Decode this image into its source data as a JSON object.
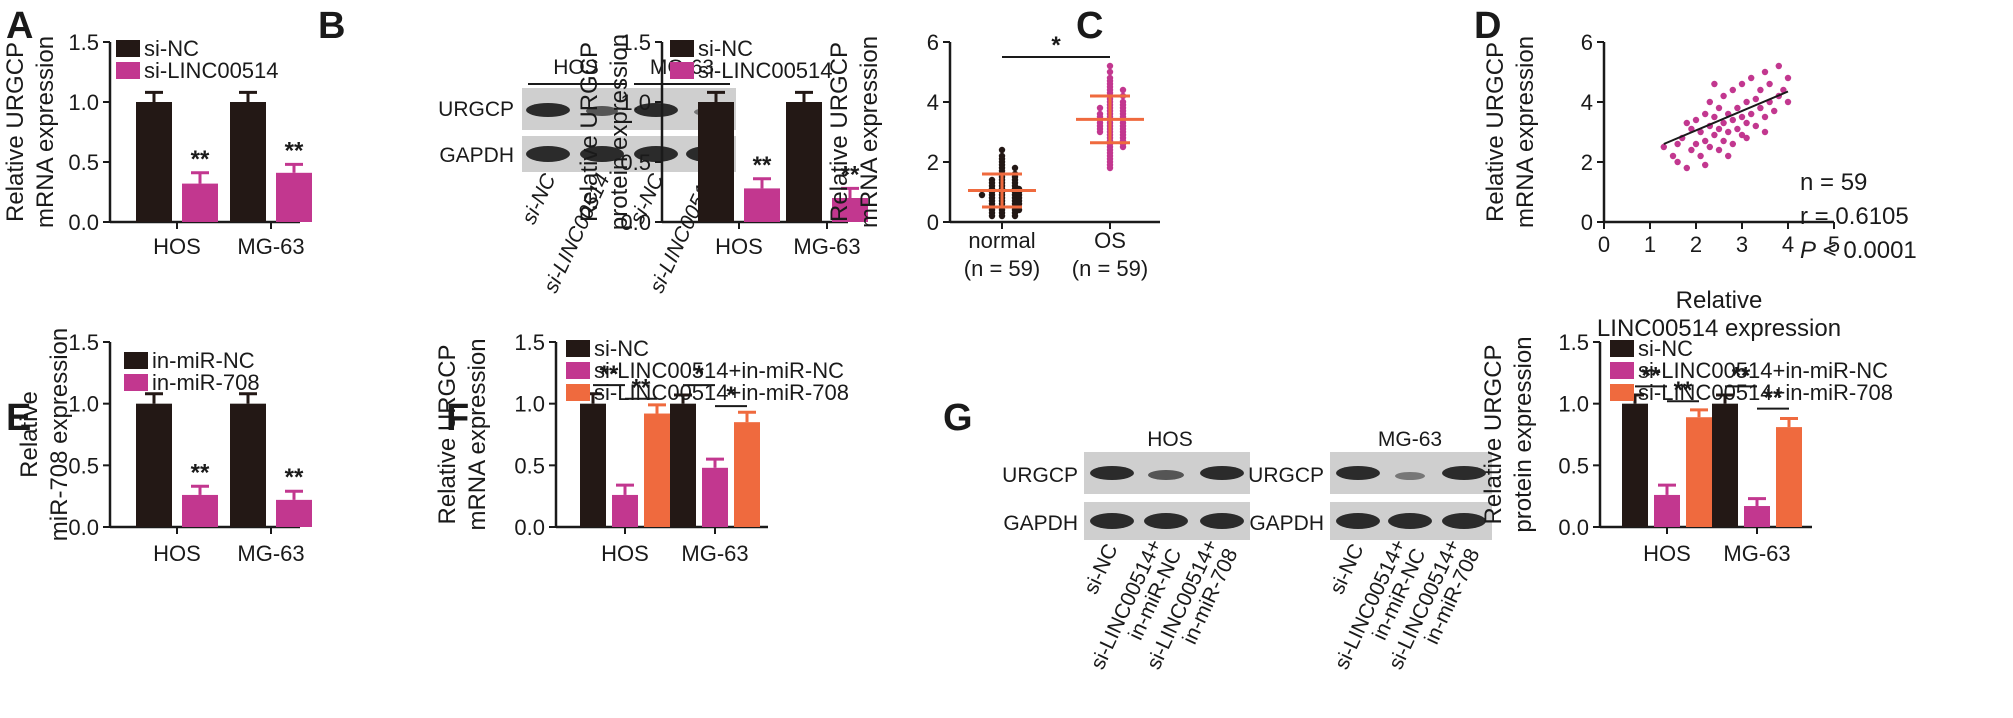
{
  "colors": {
    "black_bar": "#231815",
    "magenta": "#c2378f",
    "orange": "#ef6a3e",
    "scatter_magenta": "#c2378f",
    "axis": "#1a1a1a"
  },
  "panels": {
    "A": {
      "letter": "A"
    },
    "B": {
      "letter": "B",
      "blot": {
        "groups": [
          "HOS",
          "MG-63"
        ],
        "rows": [
          "URGCP",
          "GAPDH"
        ],
        "lanes": [
          "si-NC",
          "si-LINC00514",
          "si-NC",
          "si-LINC00514"
        ]
      }
    },
    "C": {
      "letter": "C"
    },
    "D": {
      "letter": "D"
    },
    "E": {
      "letter": "E"
    },
    "F": {
      "letter": "F"
    },
    "G": {
      "letter": "G",
      "blot_hos": {
        "title": "HOS",
        "rows": [
          "URGCP",
          "GAPDH"
        ]
      },
      "blot_mg": {
        "title": "MG-63",
        "rows": [
          "URGCP",
          "GAPDH"
        ]
      },
      "lanes": [
        "si-NC",
        "si-LINC00514+\nin-miR-NC",
        "si-LINC00514+\nin-miR-708"
      ]
    }
  },
  "chart_data": [
    {
      "id": "A",
      "type": "bar",
      "categories": [
        "HOS",
        "MG-63"
      ],
      "ylabel": "Relative URGCP\nmRNA expression",
      "ylim": [
        0,
        1.5
      ],
      "yticks": [
        "0.0",
        "0.5",
        "1.0",
        "1.5"
      ],
      "series": [
        {
          "name": "si-NC",
          "color": "#231815",
          "values": [
            1.0,
            1.0
          ],
          "err": [
            0.08,
            0.08
          ]
        },
        {
          "name": "si-LINC00514",
          "color": "#c2378f",
          "values": [
            0.32,
            0.41
          ],
          "err": [
            0.09,
            0.07
          ]
        }
      ],
      "annotations": [
        {
          "text": "**",
          "series": 1,
          "cat": 0
        },
        {
          "text": "**",
          "series": 1,
          "cat": 1
        }
      ]
    },
    {
      "id": "B",
      "type": "bar",
      "categories": [
        "HOS",
        "MG-63"
      ],
      "ylabel": "Relative URGCP\nprotein expression",
      "ylim": [
        0,
        1.5
      ],
      "yticks": [
        "0.0",
        "0.5",
        "1.0",
        "1.5"
      ],
      "series": [
        {
          "name": "si-NC",
          "color": "#231815",
          "values": [
            1.0,
            1.0
          ],
          "err": [
            0.08,
            0.08
          ]
        },
        {
          "name": "si-LINC00514",
          "color": "#c2378f",
          "values": [
            0.28,
            0.2
          ],
          "err": [
            0.08,
            0.08
          ]
        }
      ],
      "annotations": [
        {
          "text": "**",
          "series": 1,
          "cat": 0
        },
        {
          "text": "**",
          "series": 1,
          "cat": 1
        }
      ]
    },
    {
      "id": "C",
      "type": "scatter",
      "categories": [
        "normal\n(n = 59)",
        "OS\n(n = 59)"
      ],
      "ylabel": "Relative URGCP\nmRNA expression",
      "ylim": [
        0,
        6
      ],
      "yticks": [
        "0",
        "2",
        "4",
        "6"
      ],
      "groups": [
        {
          "color": "#231815",
          "mean": 1.05,
          "sd": 0.55,
          "points": [
            2.4,
            2.2,
            2.1,
            2.0,
            1.9,
            1.8,
            1.8,
            1.7,
            1.6,
            1.6,
            1.5,
            1.5,
            1.4,
            1.4,
            1.4,
            1.3,
            1.3,
            1.2,
            1.2,
            1.2,
            1.1,
            1.1,
            1.1,
            1.0,
            1.0,
            1.0,
            1.0,
            0.9,
            0.9,
            0.9,
            0.9,
            0.8,
            0.8,
            0.8,
            0.8,
            0.7,
            0.7,
            0.7,
            0.7,
            0.6,
            0.6,
            0.6,
            0.5,
            0.5,
            0.5,
            0.4,
            0.4,
            0.4,
            0.3,
            0.3,
            0.3,
            0.2,
            0.2,
            0.2,
            1.3,
            1.1,
            0.9,
            0.6,
            0.4
          ]
        },
        {
          "color": "#c2378f",
          "mean": 3.42,
          "sd": 0.78,
          "points": [
            5.2,
            5.0,
            4.8,
            4.7,
            4.6,
            4.5,
            4.4,
            4.3,
            4.2,
            4.2,
            4.1,
            4.0,
            4.0,
            3.9,
            3.9,
            3.8,
            3.8,
            3.7,
            3.7,
            3.6,
            3.6,
            3.5,
            3.5,
            3.5,
            3.4,
            3.4,
            3.4,
            3.3,
            3.3,
            3.3,
            3.2,
            3.2,
            3.2,
            3.1,
            3.1,
            3.0,
            3.0,
            2.9,
            2.9,
            2.8,
            2.8,
            2.7,
            2.7,
            2.6,
            2.5,
            2.5,
            2.4,
            2.3,
            2.2,
            2.1,
            2.0,
            1.9,
            1.8,
            3.6,
            3.0,
            2.6,
            4.4,
            3.8,
            3.1
          ]
        }
      ],
      "annotations": [
        {
          "text": "*"
        }
      ]
    },
    {
      "id": "D",
      "type": "scatter",
      "xlabel": "Relative\nLINC00514 expression",
      "ylabel": "Relative URGCP\nmRNA expression",
      "xlim": [
        0,
        5
      ],
      "ylim": [
        0,
        6
      ],
      "xticks": [
        "0",
        "1",
        "2",
        "3",
        "4",
        "5"
      ],
      "yticks": [
        "0",
        "2",
        "4",
        "6"
      ],
      "color": "#c2378f",
      "points": [
        [
          1.3,
          2.5
        ],
        [
          1.5,
          2.2
        ],
        [
          1.6,
          2.0
        ],
        [
          1.7,
          2.8
        ],
        [
          1.8,
          1.8
        ],
        [
          1.9,
          2.4
        ],
        [
          1.9,
          3.1
        ],
        [
          2.0,
          2.6
        ],
        [
          2.0,
          3.4
        ],
        [
          2.1,
          2.2
        ],
        [
          2.1,
          3.0
        ],
        [
          2.2,
          2.7
        ],
        [
          2.2,
          3.6
        ],
        [
          2.3,
          2.5
        ],
        [
          2.3,
          3.2
        ],
        [
          2.3,
          4.0
        ],
        [
          2.4,
          2.9
        ],
        [
          2.4,
          3.5
        ],
        [
          2.5,
          2.4
        ],
        [
          2.5,
          3.1
        ],
        [
          2.5,
          3.8
        ],
        [
          2.6,
          2.7
        ],
        [
          2.6,
          3.3
        ],
        [
          2.6,
          4.2
        ],
        [
          2.7,
          3.0
        ],
        [
          2.7,
          3.6
        ],
        [
          2.8,
          2.6
        ],
        [
          2.8,
          3.4
        ],
        [
          2.8,
          4.4
        ],
        [
          2.9,
          3.1
        ],
        [
          2.9,
          3.8
        ],
        [
          3.0,
          2.9
        ],
        [
          3.0,
          3.5
        ],
        [
          3.0,
          4.6
        ],
        [
          3.1,
          3.3
        ],
        [
          3.1,
          4.0
        ],
        [
          3.2,
          3.6
        ],
        [
          3.2,
          4.8
        ],
        [
          3.3,
          3.2
        ],
        [
          3.3,
          4.1
        ],
        [
          3.4,
          3.8
        ],
        [
          3.4,
          4.4
        ],
        [
          3.5,
          3.5
        ],
        [
          3.5,
          5.0
        ],
        [
          3.6,
          4.0
        ],
        [
          3.6,
          4.6
        ],
        [
          3.7,
          3.7
        ],
        [
          3.8,
          4.2
        ],
        [
          3.8,
          5.2
        ],
        [
          3.9,
          4.4
        ],
        [
          4.0,
          4.0
        ],
        [
          4.0,
          4.8
        ],
        [
          2.2,
          1.9
        ],
        [
          1.8,
          3.3
        ],
        [
          2.7,
          2.2
        ],
        [
          3.1,
          2.8
        ],
        [
          2.4,
          4.6
        ],
        [
          3.5,
          3.0
        ],
        [
          1.6,
          2.6
        ]
      ],
      "fit": [
        [
          1.3,
          2.6
        ],
        [
          4.0,
          4.35
        ]
      ],
      "stats": {
        "n": "n = 59",
        "r": "r = 0.6105",
        "p_label": "P",
        "p_rest": " < 0.0001"
      }
    },
    {
      "id": "E",
      "type": "bar",
      "categories": [
        "HOS",
        "MG-63"
      ],
      "ylabel": "Relative\nmiR-708 expression",
      "ylim": [
        0,
        1.5
      ],
      "yticks": [
        "0.0",
        "0.5",
        "1.0",
        "1.5"
      ],
      "series": [
        {
          "name": "in-miR-NC",
          "color": "#231815",
          "values": [
            1.0,
            1.0
          ],
          "err": [
            0.08,
            0.08
          ]
        },
        {
          "name": "in-miR-708",
          "color": "#c2378f",
          "values": [
            0.26,
            0.22
          ],
          "err": [
            0.07,
            0.07
          ]
        }
      ],
      "annotations": [
        {
          "text": "**",
          "series": 1,
          "cat": 0
        },
        {
          "text": "**",
          "series": 1,
          "cat": 1
        }
      ]
    },
    {
      "id": "F",
      "type": "bar",
      "categories": [
        "HOS",
        "MG-63"
      ],
      "ylabel": "Relative URGCP\nmRNA expression",
      "ylim": [
        0,
        1.5
      ],
      "yticks": [
        "0.0",
        "0.5",
        "1.0",
        "1.5"
      ],
      "series": [
        {
          "name": "si-NC",
          "color": "#231815",
          "values": [
            1.0,
            1.0
          ],
          "err": [
            0.08,
            0.07
          ]
        },
        {
          "name": "si-LINC00514+in-miR-NC",
          "color": "#c2378f",
          "values": [
            0.26,
            0.48
          ],
          "err": [
            0.08,
            0.07
          ]
        },
        {
          "name": "si-LINC00514+in-miR-708",
          "color": "#ef6a3e",
          "values": [
            0.92,
            0.85
          ],
          "err": [
            0.07,
            0.08
          ]
        }
      ],
      "brackets": [
        {
          "cat": 0,
          "from": 0,
          "to": 1,
          "text": "**",
          "y": 1.15
        },
        {
          "cat": 0,
          "from": 1,
          "to": 2,
          "text": "**",
          "y": 1.04
        },
        {
          "cat": 1,
          "from": 0,
          "to": 1,
          "text": "*",
          "y": 1.15
        },
        {
          "cat": 1,
          "from": 1,
          "to": 2,
          "text": "*",
          "y": 0.98
        }
      ]
    },
    {
      "id": "G",
      "type": "bar",
      "categories": [
        "HOS",
        "MG-63"
      ],
      "ylabel": "Relative URGCP\nprotein expression",
      "ylim": [
        0,
        1.5
      ],
      "yticks": [
        "0.0",
        "0.5",
        "1.0",
        "1.5"
      ],
      "series": [
        {
          "name": "si-NC",
          "color": "#231815",
          "values": [
            1.0,
            1.0
          ],
          "err": [
            0.07,
            0.07
          ]
        },
        {
          "name": "si-LINC00514+in-miR-NC",
          "color": "#c2378f",
          "values": [
            0.26,
            0.17
          ],
          "err": [
            0.08,
            0.06
          ]
        },
        {
          "name": "si-LINC00514+in-miR-708",
          "color": "#ef6a3e",
          "values": [
            0.89,
            0.81
          ],
          "err": [
            0.06,
            0.07
          ]
        }
      ],
      "brackets": [
        {
          "cat": 0,
          "from": 0,
          "to": 1,
          "text": "**",
          "y": 1.14
        },
        {
          "cat": 0,
          "from": 1,
          "to": 2,
          "text": "**",
          "y": 1.02
        },
        {
          "cat": 1,
          "from": 0,
          "to": 1,
          "text": "**",
          "y": 1.14
        },
        {
          "cat": 1,
          "from": 1,
          "to": 2,
          "text": "**",
          "y": 0.96
        }
      ]
    }
  ]
}
